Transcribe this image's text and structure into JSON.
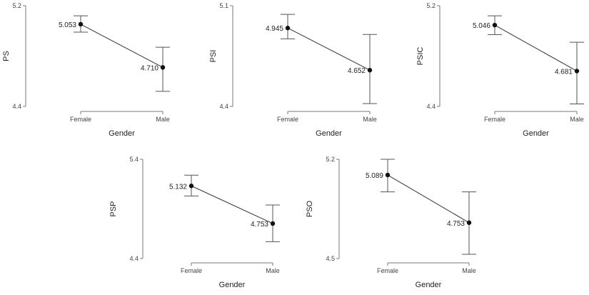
{
  "chart_data": [
    {
      "type": "line",
      "ylabel": "PS",
      "xlabel": "Gender",
      "categories": [
        "Female",
        "Male"
      ],
      "values": [
        5.053,
        4.71
      ],
      "value_labels": [
        "5.053",
        "4.710"
      ],
      "error_bars": [
        [
          4.99,
          5.12
        ],
        [
          4.52,
          4.87
        ]
      ],
      "ylim": [
        4.4,
        5.2
      ],
      "ytick_labels": [
        "5.2",
        "4.4"
      ],
      "grid": false
    },
    {
      "type": "line",
      "ylabel": "PSI",
      "xlabel": "Gender",
      "categories": [
        "Female",
        "Male"
      ],
      "values": [
        4.945,
        4.652
      ],
      "value_labels": [
        "4.945",
        "4.652"
      ],
      "error_bars": [
        [
          4.87,
          5.04
        ],
        [
          4.42,
          4.9
        ]
      ],
      "ylim": [
        4.4,
        5.1
      ],
      "ytick_labels": [
        "5.1",
        "4.4"
      ],
      "grid": false
    },
    {
      "type": "line",
      "ylabel": "PSIC",
      "xlabel": "Gender",
      "categories": [
        "Female",
        "Male"
      ],
      "values": [
        5.046,
        4.681
      ],
      "value_labels": [
        "5.046",
        "4.681"
      ],
      "error_bars": [
        [
          4.97,
          5.12
        ],
        [
          4.42,
          4.91
        ]
      ],
      "ylim": [
        4.4,
        5.2
      ],
      "ytick_labels": [
        "5.2",
        "4.4"
      ],
      "grid": false
    },
    {
      "type": "line",
      "ylabel": "PSP",
      "xlabel": "Gender",
      "categories": [
        "Female",
        "Male"
      ],
      "values": [
        5.132,
        4.753
      ],
      "value_labels": [
        "5.132",
        "4.753"
      ],
      "error_bars": [
        [
          5.03,
          5.24
        ],
        [
          4.57,
          4.94
        ]
      ],
      "ylim": [
        4.4,
        5.4
      ],
      "ytick_labels": [
        "5.4",
        "4.4"
      ],
      "grid": false
    },
    {
      "type": "line",
      "ylabel": "PSO",
      "xlabel": "Gender",
      "categories": [
        "Female",
        "Male"
      ],
      "values": [
        5.089,
        4.753
      ],
      "value_labels": [
        "5.089",
        "4.753"
      ],
      "error_bars": [
        [
          4.97,
          5.2
        ],
        [
          4.53,
          4.97
        ]
      ],
      "ylim": [
        4.5,
        5.2
      ],
      "ytick_labels": [
        "5.2",
        "4.5"
      ],
      "grid": false
    }
  ]
}
